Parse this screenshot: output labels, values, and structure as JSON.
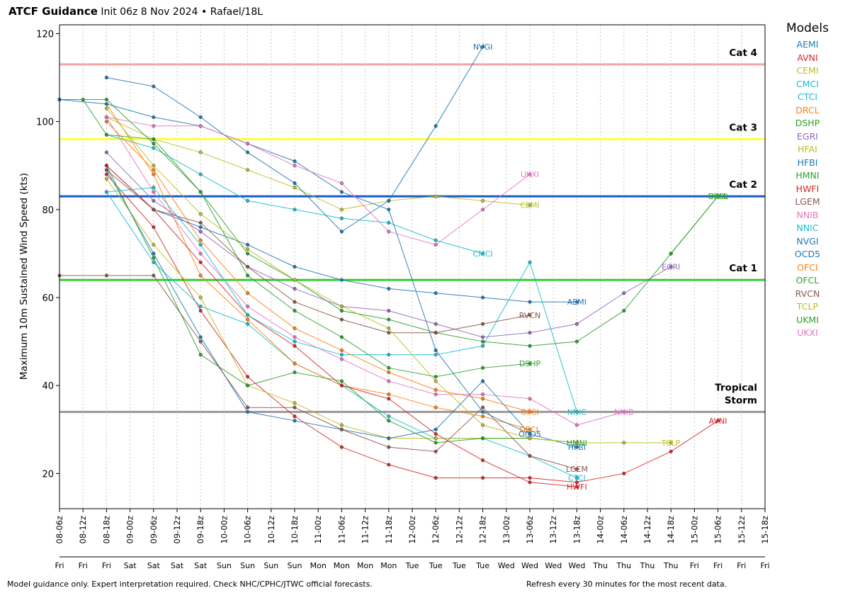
{
  "header": {
    "title": "ATCF Guidance",
    "subtitle": "Init 06z 8 Nov 2024 • Rafael/18L"
  },
  "footer": {
    "left": "Model guidance only. Expert interpretation required. Check NHC/CPHC/JTWC official forecasts.",
    "right": "Refresh every 30 minutes for the most recent data."
  },
  "legend_title": "Models",
  "chart_data": {
    "type": "line",
    "ylabel": "Maximum 10m Sustained Wind Speed (kts)",
    "ylim": [
      12,
      122
    ],
    "yticks": [
      20,
      40,
      60,
      80,
      100,
      120
    ],
    "grid": "vertical-dotted",
    "legend_placement": "right",
    "x_tick_labels": [
      "08-06z",
      "08-12z",
      "08-18z",
      "09-00z",
      "09-06z",
      "09-12z",
      "09-18z",
      "10-00z",
      "10-06z",
      "10-12z",
      "10-18z",
      "11-00z",
      "11-06z",
      "11-12z",
      "11-18z",
      "12-00z",
      "12-06z",
      "12-12z",
      "12-18z",
      "13-00z",
      "13-06z",
      "13-12z",
      "13-18z",
      "14-00z",
      "14-06z",
      "14-12z",
      "14-18z",
      "15-00z",
      "15-06z",
      "15-12z",
      "15-18z"
    ],
    "x_day_labels": [
      "Fri",
      "Fri",
      "Fri",
      "Sat",
      "Sat",
      "Sat",
      "Sat",
      "Sun",
      "Sun",
      "Sun",
      "Sun",
      "Mon",
      "Mon",
      "Mon",
      "Mon",
      "Tue",
      "Tue",
      "Tue",
      "Tue",
      "Wed",
      "Wed",
      "Wed",
      "Wed",
      "Thu",
      "Thu",
      "Thu",
      "Thu",
      "Fri",
      "Fri",
      "Fri",
      "Fri"
    ],
    "thresholds": [
      {
        "label": "Cat 4",
        "value": 113,
        "color": "#f4a4a4"
      },
      {
        "label": "Cat 3",
        "value": 96,
        "color": "#ffff33"
      },
      {
        "label": "Cat 2",
        "value": 83,
        "color": "#1a5cc8"
      },
      {
        "label": "Cat 1",
        "value": 64,
        "color": "#33cc33"
      },
      {
        "label": "Tropical Storm",
        "value": 34,
        "color": "#999999"
      }
    ],
    "series": [
      {
        "name": "AEMI",
        "color": "#1f77b4",
        "end_label": "AEMI",
        "points": [
          [
            2,
            90
          ],
          [
            4,
            80
          ],
          [
            6,
            76
          ],
          [
            8,
            72
          ],
          [
            10,
            67
          ],
          [
            12,
            64
          ],
          [
            14,
            62
          ],
          [
            16,
            61
          ],
          [
            18,
            60
          ],
          [
            20,
            59
          ],
          [
            22,
            59
          ]
        ]
      },
      {
        "name": "AVNI",
        "color": "#d62728",
        "end_label": "AVNI",
        "points": [
          [
            2,
            88
          ],
          [
            4,
            76
          ],
          [
            6,
            57
          ],
          [
            8,
            42
          ],
          [
            10,
            33
          ],
          [
            12,
            26
          ],
          [
            14,
            22
          ],
          [
            16,
            19
          ],
          [
            18,
            19
          ],
          [
            20,
            19
          ],
          [
            22,
            18
          ],
          [
            24,
            20
          ],
          [
            26,
            25
          ],
          [
            28,
            32
          ]
        ]
      },
      {
        "name": "CEMI",
        "color": "#bcbd22",
        "end_label": "CEMI",
        "points": [
          [
            2,
            101
          ],
          [
            4,
            96
          ],
          [
            6,
            93
          ],
          [
            8,
            89
          ],
          [
            10,
            85
          ],
          [
            12,
            80
          ],
          [
            14,
            82
          ],
          [
            16,
            83
          ],
          [
            18,
            82
          ],
          [
            20,
            81
          ]
        ]
      },
      {
        "name": "CMCI",
        "color": "#17becf",
        "end_label": "CMCI",
        "points": [
          [
            2,
            97
          ],
          [
            4,
            94
          ],
          [
            6,
            88
          ],
          [
            8,
            82
          ],
          [
            10,
            80
          ],
          [
            12,
            78
          ],
          [
            14,
            77
          ],
          [
            16,
            73
          ],
          [
            18,
            70
          ]
        ]
      },
      {
        "name": "CTCI",
        "color": "#17becf",
        "end_label": "CTCI",
        "points": [
          [
            2,
            84
          ],
          [
            4,
            68
          ],
          [
            6,
            58
          ],
          [
            8,
            54
          ],
          [
            10,
            45
          ],
          [
            12,
            40
          ],
          [
            14,
            33
          ],
          [
            16,
            28
          ],
          [
            18,
            28
          ],
          [
            20,
            24
          ],
          [
            22,
            19
          ]
        ]
      },
      {
        "name": "DRCL",
        "color": "#ff7f0e",
        "end_label": "DRCL",
        "points": [
          [
            2,
            104
          ],
          [
            4,
            88
          ],
          [
            6,
            65
          ],
          [
            8,
            55
          ],
          [
            10,
            45
          ],
          [
            12,
            40
          ],
          [
            14,
            38
          ],
          [
            16,
            35
          ],
          [
            18,
            33
          ],
          [
            20,
            30
          ]
        ]
      },
      {
        "name": "DSHP",
        "color": "#2ca02c",
        "end_label": "DSHP",
        "points": [
          [
            0,
            105
          ],
          [
            2,
            105
          ],
          [
            4,
            95
          ],
          [
            6,
            84
          ],
          [
            8,
            65
          ],
          [
            10,
            57
          ],
          [
            12,
            51
          ],
          [
            14,
            44
          ],
          [
            16,
            42
          ],
          [
            18,
            44
          ],
          [
            20,
            45
          ]
        ]
      },
      {
        "name": "EGRI",
        "color": "#9467bd",
        "end_label": "EGRI",
        "points": [
          [
            2,
            93
          ],
          [
            4,
            82
          ],
          [
            6,
            75
          ],
          [
            8,
            67
          ],
          [
            10,
            62
          ],
          [
            12,
            58
          ],
          [
            14,
            57
          ],
          [
            16,
            54
          ],
          [
            18,
            51
          ],
          [
            20,
            52
          ],
          [
            22,
            54
          ],
          [
            24,
            61
          ],
          [
            26,
            67
          ]
        ]
      },
      {
        "name": "HFAI",
        "color": "#bcbd22",
        "end_label": "",
        "points": [
          [
            2,
            87
          ],
          [
            4,
            72
          ],
          [
            6,
            60
          ],
          [
            8,
            40
          ],
          [
            10,
            36
          ],
          [
            12,
            31
          ],
          [
            14,
            28
          ],
          [
            16,
            28
          ],
          [
            18,
            28
          ],
          [
            20,
            28
          ],
          [
            22,
            27
          ]
        ]
      },
      {
        "name": "HFBI",
        "color": "#1f77b4",
        "end_label": "HFBI",
        "points": [
          [
            2,
            89
          ],
          [
            4,
            70
          ],
          [
            6,
            51
          ],
          [
            8,
            34
          ],
          [
            10,
            32
          ],
          [
            12,
            30
          ],
          [
            14,
            28
          ],
          [
            16,
            30
          ],
          [
            18,
            41
          ],
          [
            20,
            29
          ],
          [
            22,
            26
          ]
        ]
      },
      {
        "name": "HMNI",
        "color": "#2ca02c",
        "end_label": "HMNI",
        "points": [
          [
            2,
            90
          ],
          [
            4,
            69
          ],
          [
            6,
            47
          ],
          [
            8,
            40
          ],
          [
            10,
            43
          ],
          [
            12,
            41
          ],
          [
            14,
            32
          ],
          [
            16,
            27
          ],
          [
            18,
            28
          ],
          [
            20,
            28
          ],
          [
            22,
            27
          ]
        ]
      },
      {
        "name": "HWFI",
        "color": "#d62728",
        "end_label": "HWFI",
        "points": [
          [
            2,
            90
          ],
          [
            4,
            80
          ],
          [
            6,
            68
          ],
          [
            8,
            56
          ],
          [
            10,
            49
          ],
          [
            12,
            40
          ],
          [
            14,
            37
          ],
          [
            16,
            29
          ],
          [
            18,
            23
          ],
          [
            20,
            18
          ],
          [
            22,
            17
          ]
        ]
      },
      {
        "name": "LGEM",
        "color": "#8c564b",
        "end_label": "LGEM",
        "points": [
          [
            0,
            65
          ],
          [
            2,
            65
          ],
          [
            4,
            65
          ],
          [
            6,
            50
          ],
          [
            8,
            35
          ],
          [
            10,
            35
          ],
          [
            12,
            30
          ],
          [
            14,
            26
          ],
          [
            16,
            25
          ],
          [
            18,
            35
          ],
          [
            20,
            24
          ],
          [
            22,
            21
          ]
        ]
      },
      {
        "name": "NNIB",
        "color": "#e377c2",
        "end_label": "NNIB",
        "points": [
          [
            2,
            101
          ],
          [
            4,
            84
          ],
          [
            6,
            70
          ],
          [
            8,
            58
          ],
          [
            10,
            51
          ],
          [
            12,
            46
          ],
          [
            14,
            41
          ],
          [
            16,
            38
          ],
          [
            18,
            38
          ],
          [
            20,
            37
          ],
          [
            22,
            31
          ],
          [
            24,
            34
          ]
        ]
      },
      {
        "name": "NNIC",
        "color": "#17becf",
        "end_label": "NNIC",
        "points": [
          [
            2,
            84
          ],
          [
            4,
            85
          ],
          [
            6,
            72
          ],
          [
            8,
            56
          ],
          [
            10,
            50
          ],
          [
            12,
            47
          ],
          [
            14,
            47
          ],
          [
            16,
            47
          ],
          [
            18,
            49
          ],
          [
            20,
            68
          ],
          [
            22,
            34
          ]
        ]
      },
      {
        "name": "NVGI",
        "color": "#1f77b4",
        "end_label": "NVGI",
        "points": [
          [
            2,
            110
          ],
          [
            4,
            108
          ],
          [
            6,
            101
          ],
          [
            8,
            93
          ],
          [
            10,
            86
          ],
          [
            12,
            75
          ],
          [
            14,
            82
          ],
          [
            16,
            99
          ],
          [
            18,
            117
          ]
        ]
      },
      {
        "name": "OCD5",
        "color": "#1f77b4",
        "end_label": "OCD5",
        "points": [
          [
            0,
            105
          ],
          [
            2,
            104
          ],
          [
            4,
            101
          ],
          [
            6,
            99
          ],
          [
            8,
            95
          ],
          [
            10,
            91
          ],
          [
            12,
            84
          ],
          [
            14,
            80
          ],
          [
            16,
            48
          ],
          [
            18,
            34
          ],
          [
            20,
            29
          ]
        ]
      },
      {
        "name": "OFCI",
        "color": "#ff7f0e",
        "end_label": "OFCI",
        "points": [
          [
            2,
            100
          ],
          [
            4,
            89
          ],
          [
            6,
            73
          ],
          [
            8,
            61
          ],
          [
            10,
            53
          ],
          [
            12,
            48
          ],
          [
            14,
            43
          ],
          [
            16,
            39
          ],
          [
            18,
            37
          ],
          [
            20,
            34
          ]
        ]
      },
      {
        "name": "OFCL",
        "color": "#2ca02c",
        "end_label": "OFCL",
        "points": [
          [
            1,
            105
          ],
          [
            2,
            97
          ],
          [
            4,
            96
          ],
          [
            6,
            84
          ],
          [
            8,
            70
          ],
          [
            10,
            64
          ],
          [
            12,
            57
          ],
          [
            14,
            55
          ],
          [
            16,
            52
          ],
          [
            18,
            50
          ],
          [
            20,
            49
          ],
          [
            22,
            50
          ],
          [
            24,
            57
          ],
          [
            26,
            70
          ],
          [
            28,
            83
          ]
        ]
      },
      {
        "name": "RVCN",
        "color": "#8c564b",
        "end_label": "RVCN",
        "points": [
          [
            2,
            89
          ],
          [
            4,
            80
          ],
          [
            6,
            77
          ],
          [
            8,
            67
          ],
          [
            10,
            59
          ],
          [
            12,
            55
          ],
          [
            14,
            52
          ],
          [
            16,
            52
          ],
          [
            18,
            54
          ],
          [
            20,
            56
          ]
        ]
      },
      {
        "name": "TCLP",
        "color": "#bcbd22",
        "end_label": "TCLP",
        "points": [
          [
            2,
            103
          ],
          [
            4,
            90
          ],
          [
            6,
            79
          ],
          [
            8,
            71
          ],
          [
            10,
            64
          ],
          [
            12,
            58
          ],
          [
            14,
            53
          ],
          [
            16,
            41
          ],
          [
            18,
            31
          ],
          [
            20,
            28
          ],
          [
            22,
            27
          ],
          [
            24,
            27
          ],
          [
            26,
            27
          ]
        ]
      },
      {
        "name": "UKMI",
        "color": "#2ca02c",
        "end_label": "UKMI",
        "points": [
          [
            26,
            70
          ],
          [
            28,
            83
          ]
        ]
      },
      {
        "name": "UKXI",
        "color": "#e377c2",
        "end_label": "UKXI",
        "points": [
          [
            2,
            101
          ],
          [
            4,
            99
          ],
          [
            6,
            99
          ],
          [
            8,
            95
          ],
          [
            10,
            90
          ],
          [
            12,
            86
          ],
          [
            14,
            75
          ],
          [
            16,
            72
          ],
          [
            18,
            80
          ],
          [
            20,
            88
          ]
        ]
      }
    ]
  }
}
